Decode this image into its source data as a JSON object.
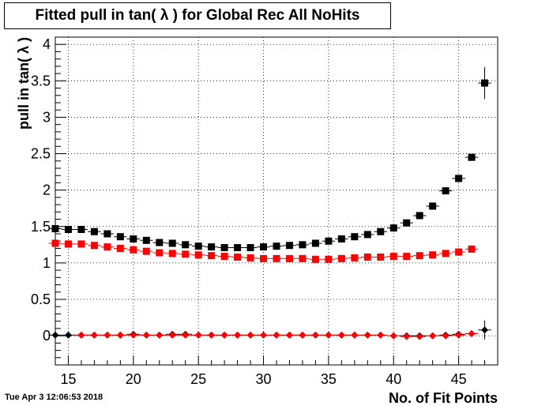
{
  "title": "Fitted pull in tan( λ ) for Global Rec All NoHits",
  "timestamp": "Tue Apr  3 12:06:53 2018",
  "chart_data": {
    "type": "scatter",
    "title": "Fitted pull in tan( λ ) for Global Rec All NoHits",
    "xlabel": "No. of Fit Points",
    "ylabel": "pull in tan( λ )",
    "xlim": [
      14,
      48
    ],
    "ylim": [
      -0.4,
      4.1
    ],
    "xticks": [
      15,
      20,
      25,
      30,
      35,
      40,
      45
    ],
    "yticks": [
      0,
      0.5,
      1,
      1.5,
      2,
      2.5,
      3,
      3.5,
      4
    ],
    "xtick_labels": [
      "15",
      "20",
      "25",
      "30",
      "35",
      "40",
      "45"
    ],
    "ytick_labels": [
      "0",
      "0.5",
      "1",
      "1.5",
      "2",
      "2.5",
      "3",
      "3.5",
      "4"
    ],
    "grid": true,
    "x": [
      14,
      15,
      16,
      17,
      18,
      19,
      20,
      21,
      22,
      23,
      24,
      25,
      26,
      27,
      28,
      29,
      30,
      31,
      32,
      33,
      34,
      35,
      36,
      37,
      38,
      39,
      40,
      41,
      42,
      43,
      44,
      45,
      46,
      47
    ],
    "series": [
      {
        "color": "#000000",
        "marker": "square",
        "values": [
          1.47,
          1.46,
          1.46,
          1.43,
          1.4,
          1.36,
          1.33,
          1.31,
          1.28,
          1.27,
          1.25,
          1.23,
          1.22,
          1.21,
          1.21,
          1.21,
          1.22,
          1.23,
          1.24,
          1.25,
          1.27,
          1.3,
          1.33,
          1.36,
          1.39,
          1.43,
          1.48,
          1.55,
          1.65,
          1.78,
          1.99,
          2.16,
          2.45,
          3.47
        ],
        "errors": [
          0,
          0,
          0,
          0,
          0,
          0,
          0,
          0,
          0,
          0,
          0,
          0,
          0,
          0,
          0,
          0,
          0,
          0,
          0,
          0,
          0,
          0,
          0,
          0,
          0,
          0,
          0,
          0,
          0,
          0,
          0,
          0,
          0,
          0.22
        ]
      },
      {
        "color": "#ff0000",
        "marker": "square",
        "values": [
          1.27,
          1.26,
          1.26,
          1.24,
          1.22,
          1.2,
          1.18,
          1.16,
          1.14,
          1.13,
          1.12,
          1.11,
          1.1,
          1.09,
          1.08,
          1.07,
          1.06,
          1.06,
          1.06,
          1.06,
          1.05,
          1.05,
          1.06,
          1.07,
          1.08,
          1.08,
          1.09,
          1.09,
          1.1,
          1.11,
          1.13,
          1.15,
          1.19,
          null
        ],
        "errors": []
      },
      {
        "color": "#000000",
        "marker": "diamond",
        "values": [
          0.01,
          0.01,
          0.01,
          0.01,
          0.01,
          0.01,
          0.02,
          0.01,
          0.01,
          0.02,
          0.02,
          0.01,
          0.01,
          0.01,
          0.01,
          0.01,
          0.01,
          0.01,
          0.01,
          0.01,
          0.01,
          0.01,
          0.01,
          0.01,
          0.01,
          0.01,
          0.0,
          0.0,
          0.0,
          0.0,
          0.01,
          0.02,
          0.03,
          0.08
        ],
        "errors": [
          0,
          0,
          0,
          0,
          0,
          0,
          0,
          0,
          0,
          0,
          0,
          0,
          0,
          0,
          0,
          0,
          0,
          0,
          0,
          0,
          0,
          0,
          0,
          0,
          0,
          0,
          0,
          0,
          0,
          0,
          0,
          0,
          0,
          0.13
        ]
      },
      {
        "color": "#ff0000",
        "marker": "diamond",
        "values": [
          null,
          null,
          0.01,
          0.01,
          0.01,
          0.01,
          0.01,
          0.01,
          0.01,
          0.01,
          0.01,
          0.01,
          0.01,
          0.01,
          0.01,
          0.01,
          0.01,
          0.01,
          0.01,
          0.01,
          0.01,
          0.01,
          0.01,
          0.01,
          0.01,
          0.01,
          0.0,
          -0.01,
          -0.01,
          0.0,
          0.0,
          0.01,
          0.03,
          null
        ],
        "errors": []
      }
    ]
  }
}
